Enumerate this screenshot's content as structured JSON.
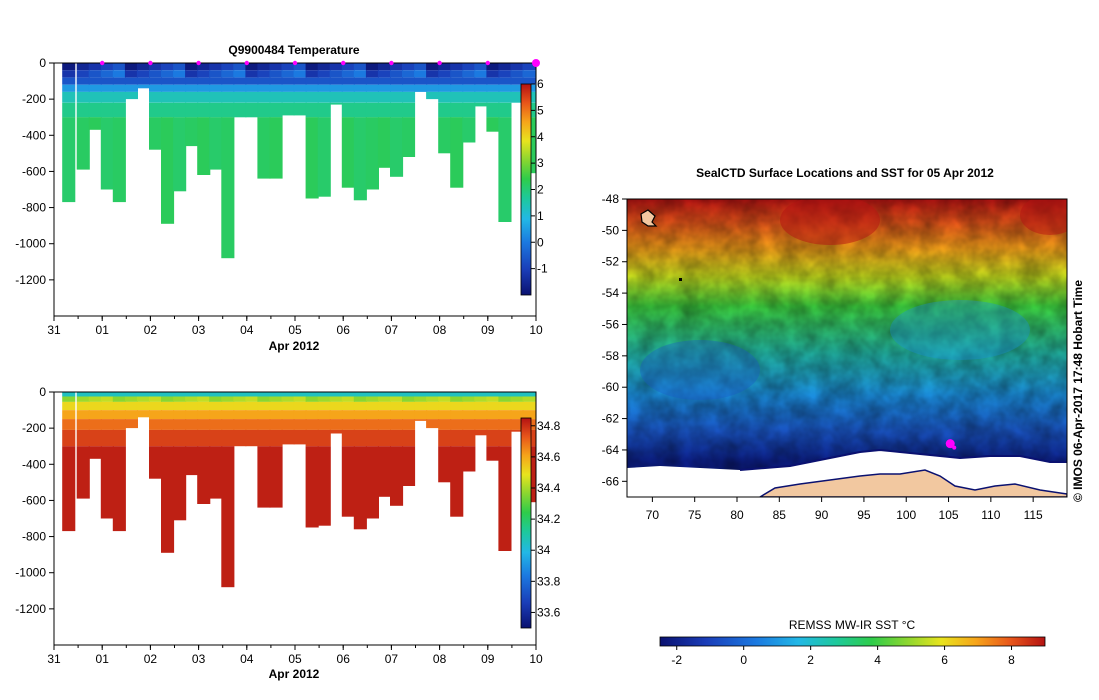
{
  "chart_data": [
    {
      "type": "heatmap",
      "title": "Q9900484  Temperature",
      "xlabel": "Apr 2012",
      "x_tick_labels": [
        "31",
        "01",
        "02",
        "03",
        "04",
        "05",
        "06",
        "07",
        "08",
        "09",
        "10"
      ],
      "y_tick_values": [
        0,
        -200,
        -400,
        -600,
        -800,
        -1000,
        -1200
      ],
      "y_tick_labels": [
        "0",
        "-200",
        "-400",
        "-600",
        "-800",
        "-1000",
        "-1200"
      ],
      "ylim": [
        -1400,
        0
      ],
      "xlim_days": [
        0,
        10
      ],
      "profile_days": [
        0.3,
        0.6,
        0.85,
        1.1,
        1.35,
        1.6,
        1.85,
        2.1,
        2.35,
        2.6,
        2.85,
        3.1,
        3.35,
        3.6,
        3.85,
        4.1,
        4.35,
        4.6,
        4.85,
        5.1,
        5.35,
        5.6,
        5.85,
        6.1,
        6.35,
        6.6,
        6.85,
        7.1,
        7.35,
        7.6,
        7.85,
        8.1,
        8.35,
        8.6,
        8.85,
        9.1,
        9.35,
        9.6,
        9.85
      ],
      "profile_max_depths": [
        -770,
        -590,
        -370,
        -700,
        -770,
        -200,
        -140,
        -480,
        -890,
        -710,
        -460,
        -620,
        -590,
        -1080,
        -300,
        -300,
        -640,
        -640,
        -290,
        -290,
        -750,
        -740,
        -230,
        -690,
        -760,
        -700,
        -580,
        -630,
        -520,
        -160,
        -200,
        -500,
        -690,
        -440,
        -240,
        -380,
        -880,
        -220,
        -610
      ],
      "surface_markers_days": [
        1,
        2,
        3,
        4,
        5,
        6,
        7,
        8,
        9,
        10
      ],
      "colorbar": {
        "min": -2,
        "max": 6,
        "ticks": [
          -1,
          0,
          1,
          2,
          3,
          4,
          5,
          6
        ],
        "tick_labels": [
          "-1",
          "0",
          "1",
          "2",
          "3",
          "4",
          "5",
          "6"
        ]
      },
      "palette": [
        "#0a1170",
        "#1a3db8",
        "#1b79e0",
        "#22b8e6",
        "#1ec99a",
        "#2ecc4a",
        "#8ad630",
        "#e8e41e",
        "#f6a51a",
        "#e8561a",
        "#b41212"
      ]
    },
    {
      "type": "heatmap",
      "title": "",
      "xlabel": "Apr 2012",
      "x_tick_labels": [
        "31",
        "01",
        "02",
        "03",
        "04",
        "05",
        "06",
        "07",
        "08",
        "09",
        "10"
      ],
      "y_tick_values": [
        0,
        -200,
        -400,
        -600,
        -800,
        -1000,
        -1200
      ],
      "y_tick_labels": [
        "0",
        "-200",
        "-400",
        "-600",
        "-800",
        "-1000",
        "-1200"
      ],
      "ylim": [
        -1400,
        0
      ],
      "colorbar": {
        "min": 33.5,
        "max": 34.85,
        "ticks": [
          33.6,
          33.8,
          34,
          34.2,
          34.4,
          34.6,
          34.8
        ],
        "tick_labels": [
          "33.6",
          "33.8",
          "34",
          "34.2",
          "34.4",
          "34.6",
          "34.8"
        ]
      },
      "palette": [
        "#0a1170",
        "#1a3db8",
        "#1b79e0",
        "#22b8e6",
        "#1ec99a",
        "#2ecc4a",
        "#8ad630",
        "#e8e41e",
        "#f6a51a",
        "#e8561a",
        "#b41212"
      ]
    },
    {
      "type": "heatmap",
      "title": "SealCTD Surface Locations and SST for 05 Apr 2012",
      "x_tick_values": [
        70,
        75,
        80,
        85,
        90,
        95,
        100,
        105,
        110,
        115
      ],
      "x_tick_labels": [
        "70",
        "75",
        "80",
        "85",
        "90",
        "95",
        "100",
        "105",
        "110",
        "115"
      ],
      "y_tick_values": [
        -48,
        -50,
        -52,
        -54,
        -56,
        -58,
        -60,
        -62,
        -64,
        -66
      ],
      "y_tick_labels": [
        "-48",
        "-50",
        "-52",
        "-54",
        "-56",
        "-58",
        "-60",
        "-62",
        "-64",
        "-66"
      ],
      "xlim": [
        67,
        119
      ],
      "ylim": [
        -67,
        -48
      ],
      "seal_location": {
        "lon": 105.2,
        "lat": -63.6
      },
      "colorbar": {
        "label": "REMSS MW-IR SST °C",
        "min": -2.5,
        "max": 9,
        "ticks": [
          -2,
          0,
          2,
          4,
          6,
          8
        ],
        "tick_labels": [
          "-2",
          "0",
          "2",
          "4",
          "6",
          "8"
        ]
      },
      "side_label": "© IMOS 06-Apr-2017 17:48 Hobart Time"
    }
  ],
  "colors": {
    "seal_marker": "#ff00ff",
    "land": "#f2c8a0",
    "ice": "#ffffff"
  }
}
